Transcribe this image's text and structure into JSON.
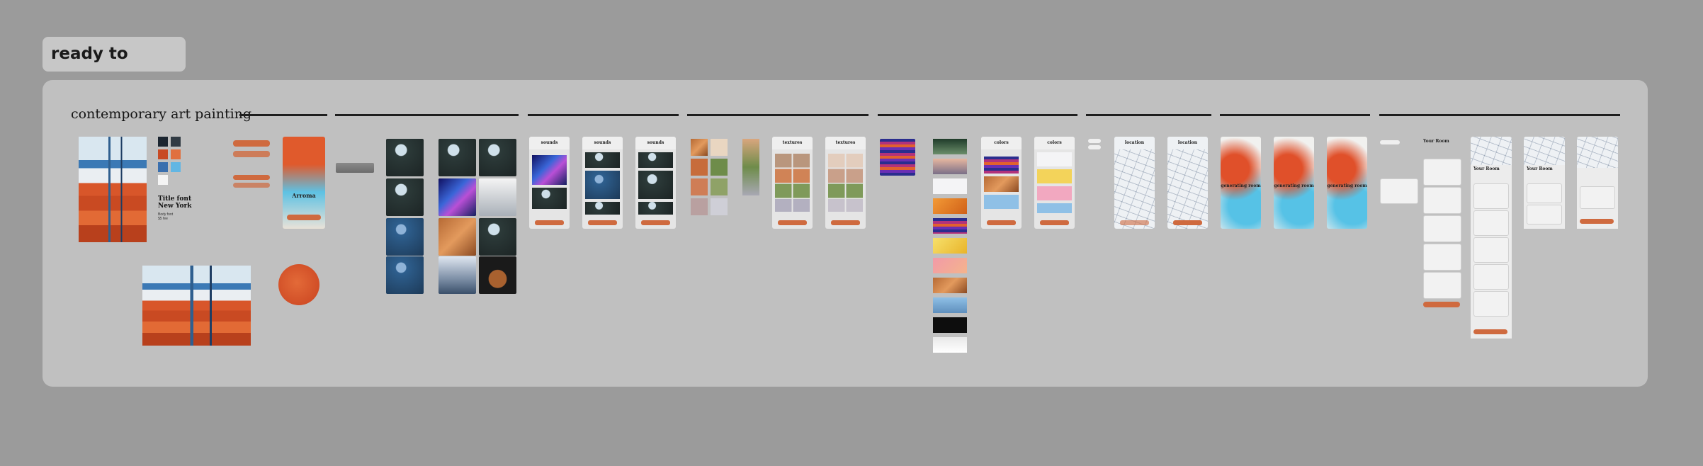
{
  "board": {
    "status_label": "ready to develop",
    "section_title": "contemporary art painting"
  },
  "style_tile": {
    "font_title": "Title font",
    "font_city": "New York",
    "body_font_label": "Body font",
    "body_font_sample": "$5 fee",
    "swatches": [
      "#1b2530",
      "#313b44",
      "#c84a24",
      "#e0703f",
      "#3a6fae",
      "#62b6e3",
      "#f4f4f4"
    ],
    "accent_color": "#cf6a3f"
  },
  "artwork_screen": {
    "title": "Arroma"
  },
  "screens": {
    "sounds": [
      "sounds",
      "sounds",
      "sounds"
    ],
    "textures": [
      "textures",
      "textures"
    ],
    "colors": [
      "colors",
      "colors"
    ],
    "locations": [
      "location",
      "location"
    ],
    "generating": [
      "generating room",
      "generating room",
      "generating room"
    ],
    "tour": [
      "Your Room",
      "Your Room",
      "Your Room"
    ]
  }
}
